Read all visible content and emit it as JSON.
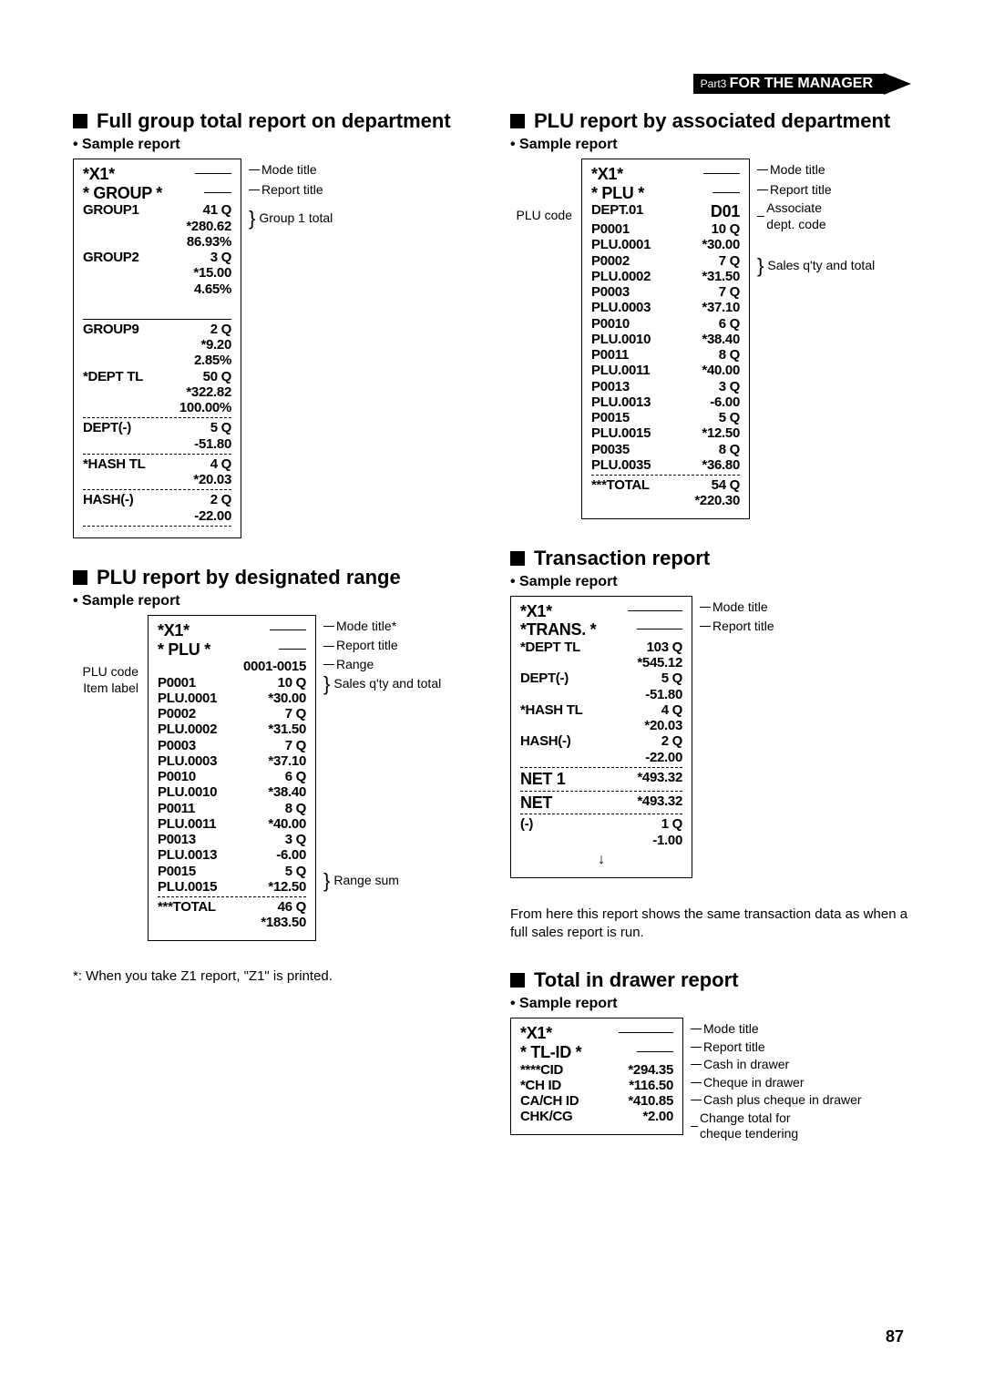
{
  "header_ribbon": {
    "part": "Part3 ",
    "title": "FOR THE MANAGER"
  },
  "page_num": "87",
  "sec1": {
    "title": "Full group total report on department",
    "sample": "Sample report",
    "receipt": {
      "mode": "*X1*",
      "report_title": "* GROUP *",
      "grp1": {
        "name": "GROUP1",
        "q": "41 Q",
        "amt": "*280.62",
        "pct": "86.93%"
      },
      "grp2": {
        "name": "GROUP2",
        "q": "3 Q",
        "amt": "*15.00",
        "pct": "4.65%"
      },
      "grp9": {
        "name": "GROUP9",
        "q": "2 Q",
        "amt": "*9.20",
        "pct": "2.85%"
      },
      "dept_tl": {
        "name": "*DEPT TL",
        "q": "50 Q",
        "amt": "*322.82",
        "pct": "100.00%"
      },
      "dept_n": {
        "name": "DEPT(-)",
        "q": "5 Q",
        "amt": "-51.80"
      },
      "hash_tl": {
        "name": "*HASH TL",
        "q": "4 Q",
        "amt": "*20.03"
      },
      "hash_n": {
        "name": "HASH(-)",
        "q": "2 Q",
        "amt": "-22.00"
      }
    },
    "annot": {
      "mode": "Mode title",
      "report": "Report title",
      "g1": "Group 1 total"
    }
  },
  "sec2": {
    "title": "PLU report by designated range",
    "sample": "Sample report",
    "receipt": {
      "mode": "*X1*",
      "report_title": "*   PLU   *",
      "range": "0001-0015",
      "rows": [
        {
          "a": "P0001",
          "q": "10 Q"
        },
        {
          "a": "PLU.0001",
          "b": "*30.00"
        },
        {
          "a": "P0002",
          "q": "7 Q"
        },
        {
          "a": "PLU.0002",
          "b": "*31.50"
        },
        {
          "a": "P0003",
          "q": "7 Q"
        },
        {
          "a": "PLU.0003",
          "b": "*37.10"
        },
        {
          "a": "P0010",
          "q": "6 Q"
        },
        {
          "a": "PLU.0010",
          "b": "*38.40"
        },
        {
          "a": "P0011",
          "q": "8 Q"
        },
        {
          "a": "PLU.0011",
          "b": "*40.00"
        },
        {
          "a": "P0013",
          "q": "3 Q"
        },
        {
          "a": "PLU.0013",
          "b": "-6.00"
        },
        {
          "a": "P0015",
          "q": "5 Q"
        },
        {
          "a": "PLU.0015",
          "b": "*12.50"
        }
      ],
      "total": {
        "name": "***TOTAL",
        "q": "46 Q",
        "amt": "*183.50"
      }
    },
    "left_annot": {
      "plu": "PLU code",
      "item": "Item label"
    },
    "right_annot": {
      "mode": "Mode title*",
      "report": "Report title",
      "range": "Range",
      "sales": "Sales q'ty and total",
      "rangesum": "Range sum"
    },
    "footnote": "*: When you take Z1 report, \"Z1\" is printed."
  },
  "sec3": {
    "title": "PLU report by associated department",
    "sample": "Sample report",
    "receipt": {
      "mode": "*X1*",
      "report_title": "*   PLU   *",
      "dept": {
        "name": "DEPT.01",
        "code": "D01"
      },
      "rows": [
        {
          "a": "P0001",
          "q": "10 Q"
        },
        {
          "a": "PLU.0001",
          "b": "*30.00"
        },
        {
          "a": "P0002",
          "q": "7 Q"
        },
        {
          "a": "PLU.0002",
          "b": "*31.50"
        },
        {
          "a": "P0003",
          "q": "7 Q"
        },
        {
          "a": "PLU.0003",
          "b": "*37.10"
        },
        {
          "a": "P0010",
          "q": "6 Q"
        },
        {
          "a": "PLU.0010",
          "b": "*38.40"
        },
        {
          "a": "P0011",
          "q": "8 Q"
        },
        {
          "a": "PLU.0011",
          "b": "*40.00"
        },
        {
          "a": "P0013",
          "q": "3 Q"
        },
        {
          "a": "PLU.0013",
          "b": "-6.00"
        },
        {
          "a": "P0015",
          "q": "5 Q"
        },
        {
          "a": "PLU.0015",
          "b": "*12.50"
        },
        {
          "a": "P0035",
          "q": "8 Q"
        },
        {
          "a": "PLU.0035",
          "b": "*36.80"
        }
      ],
      "total": {
        "name": "***TOTAL",
        "q": "54 Q",
        "amt": "*220.30"
      }
    },
    "left_annot": {
      "plu": "PLU code"
    },
    "right_annot": {
      "mode": "Mode title",
      "report": "Report title",
      "assoc": "Associate dept. code",
      "sales": "Sales q'ty and total"
    }
  },
  "sec4": {
    "title": "Transaction report",
    "sample": "Sample report",
    "receipt": {
      "mode": "*X1*",
      "report_title": "*TRANS. *",
      "dept_tl": {
        "name": "*DEPT TL",
        "q": "103 Q",
        "amt": "*545.12"
      },
      "dept_n": {
        "name": "DEPT(-)",
        "q": "5 Q",
        "amt": "-51.80"
      },
      "hash_tl": {
        "name": "*HASH TL",
        "q": "4 Q",
        "amt": "*20.03"
      },
      "hash_n": {
        "name": "HASH(-)",
        "q": "2 Q",
        "amt": "-22.00"
      },
      "net1": {
        "name": "NET 1",
        "amt": "*493.32"
      },
      "net": {
        "name": "NET",
        "amt": "*493.32"
      },
      "neg": {
        "name": "(-)",
        "q": "1 Q",
        "amt": "-1.00"
      }
    },
    "right_annot": {
      "mode": "Mode title",
      "report": "Report title"
    },
    "note": "From here this report shows the same transaction data as when a full sales report is run."
  },
  "sec5": {
    "title": "Total in drawer report",
    "sample": "Sample report",
    "receipt": {
      "mode": "*X1*",
      "report_title": "* TL-ID *",
      "cid": {
        "name": "****CID",
        "amt": "*294.35"
      },
      "chid": {
        "name": "*CH ID",
        "amt": "*116.50"
      },
      "cachid": {
        "name": "CA/CH ID",
        "amt": "*410.85"
      },
      "chkcg": {
        "name": "CHK/CG",
        "amt": "*2.00"
      }
    },
    "right_annot": {
      "mode": "Mode title",
      "report": "Report title",
      "cid": "Cash in drawer",
      "chid": "Cheque in drawer",
      "cachid": "Cash plus cheque in drawer",
      "chkcg": "Change total for cheque tendering"
    }
  }
}
